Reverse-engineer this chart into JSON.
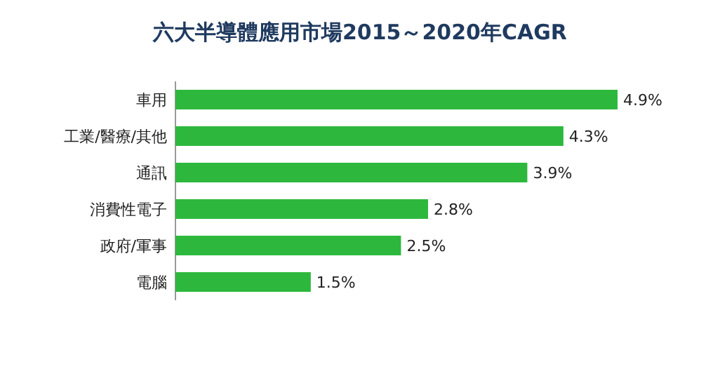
{
  "chart_data": {
    "type": "bar",
    "orientation": "horizontal",
    "title": "六大半導體應用市場2015～2020年CAGR",
    "categories": [
      "車用",
      "工業/醫療/其他",
      "通訊",
      "消費性電子",
      "政府/軍事",
      "電腦"
    ],
    "values": [
      4.9,
      4.3,
      3.9,
      2.8,
      2.5,
      1.5
    ],
    "value_labels": [
      "4.9%",
      "4.3%",
      "3.9%",
      "2.8%",
      "2.5%",
      "1.5%"
    ],
    "color": "#2db83d"
  }
}
